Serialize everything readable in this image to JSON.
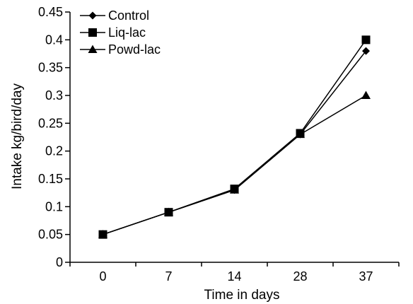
{
  "chart_data": {
    "type": "line",
    "title": "",
    "xlabel": "Time in days",
    "ylabel": "Intake kg/bird/day",
    "categories": [
      "0",
      "7",
      "14",
      "28",
      "37"
    ],
    "ylim": [
      0,
      0.45
    ],
    "yticks": [
      "0",
      "0.05",
      "0.1",
      "0.15",
      "0.2",
      "0.25",
      "0.3",
      "0.35",
      "0.4",
      "0.45"
    ],
    "grid": false,
    "legend_position": "top-left",
    "series": [
      {
        "name": "Control",
        "marker": "diamond",
        "values": [
          0.05,
          0.09,
          0.13,
          0.23,
          0.38
        ]
      },
      {
        "name": "Liq-lac",
        "marker": "square",
        "values": [
          0.05,
          0.09,
          0.132,
          0.232,
          0.4
        ]
      },
      {
        "name": "Powd-lac",
        "marker": "triangle",
        "values": [
          0.05,
          0.09,
          0.13,
          0.23,
          0.3
        ]
      }
    ],
    "colors": {
      "line": "#000000",
      "background": "#ffffff"
    }
  }
}
